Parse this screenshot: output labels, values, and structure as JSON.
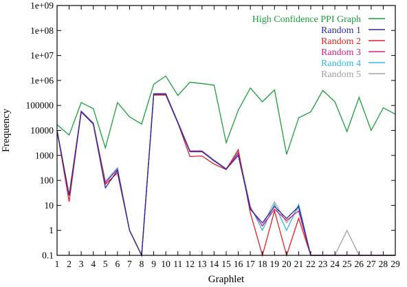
{
  "chart_data": {
    "type": "line",
    "xlabel": "Graphlet",
    "ylabel": "Frequency",
    "yscale": "log",
    "ylim": [
      0.1,
      1000000000
    ],
    "xlim": [
      1,
      29
    ],
    "y_tick_labels": [
      "0.1",
      "1",
      "10",
      "100",
      "1000",
      "10000",
      "100000",
      "1e+06",
      "1e+07",
      "1e+08",
      "1e+09"
    ],
    "y_tick_values": [
      0.1,
      1,
      10,
      100,
      1000,
      10000,
      100000,
      1000000,
      10000000,
      100000000,
      1000000000
    ],
    "x": [
      1,
      2,
      3,
      4,
      5,
      6,
      7,
      8,
      9,
      10,
      11,
      12,
      13,
      14,
      15,
      16,
      17,
      18,
      19,
      20,
      21,
      22,
      23,
      24,
      25,
      26,
      27,
      28,
      29
    ],
    "legend_position": "top-right",
    "grid": false,
    "series": [
      {
        "name": "High Confidence PPI Graph",
        "color": "#1a9e3a",
        "values": [
          17000,
          6500,
          130000,
          75000,
          2000,
          130000,
          35000,
          18000,
          700000,
          1500000,
          250000,
          850000,
          750000,
          650000,
          3200,
          65000,
          500000,
          140000,
          420000,
          1100,
          32000,
          55000,
          400000,
          140000,
          9000,
          210000,
          10000,
          80000,
          45000
        ]
      },
      {
        "name": "Random 1",
        "color": "#2a2aa0",
        "values": [
          10000,
          25,
          55000,
          18000,
          50,
          250,
          1,
          0.1,
          280000,
          280000,
          20000,
          1400,
          1400,
          600,
          280,
          1000,
          7,
          2,
          9,
          3,
          9,
          0.1,
          0.1,
          0.1,
          0.1,
          0.1,
          0.1,
          0.1,
          0.1
        ]
      },
      {
        "name": "Random 2",
        "color": "#e02020",
        "values": [
          10000,
          14,
          55000,
          18000,
          70,
          200,
          1,
          0.1,
          260000,
          260000,
          20000,
          900,
          950,
          450,
          270,
          1700,
          5,
          0.1,
          6,
          0.1,
          3,
          0.1,
          0.1,
          0.1,
          0.1,
          0.1,
          0.1,
          0.1,
          0.1
        ]
      },
      {
        "name": "Random 3",
        "color": "#d0208a",
        "values": [
          10000,
          25,
          58000,
          19000,
          80,
          280,
          1,
          0.1,
          290000,
          290000,
          21000,
          1500,
          1500,
          620,
          290,
          1200,
          8,
          1.5,
          7,
          2.5,
          6,
          0.1,
          0.1,
          0.1,
          0.1,
          0.1,
          0.1,
          0.1,
          0.1
        ]
      },
      {
        "name": "Random 4",
        "color": "#30b8e0",
        "values": [
          10000,
          25,
          60000,
          20000,
          90,
          320,
          1,
          0.1,
          300000,
          300000,
          22000,
          1500,
          1500,
          650,
          290,
          1400,
          9,
          1,
          11,
          1,
          11,
          0.1,
          0.1,
          0.1,
          0.1,
          0.1,
          0.1,
          0.1,
          0.1
        ]
      },
      {
        "name": "Random 5",
        "color": "#a0a0a0",
        "values": [
          10000,
          25,
          60000,
          20000,
          90,
          300,
          1,
          0.1,
          300000,
          300000,
          22000,
          1500,
          1500,
          650,
          290,
          1300,
          8,
          1.5,
          14,
          2,
          8,
          0.1,
          0.1,
          0.1,
          1,
          0.1,
          0.1,
          0.1,
          0.1
        ]
      }
    ]
  }
}
